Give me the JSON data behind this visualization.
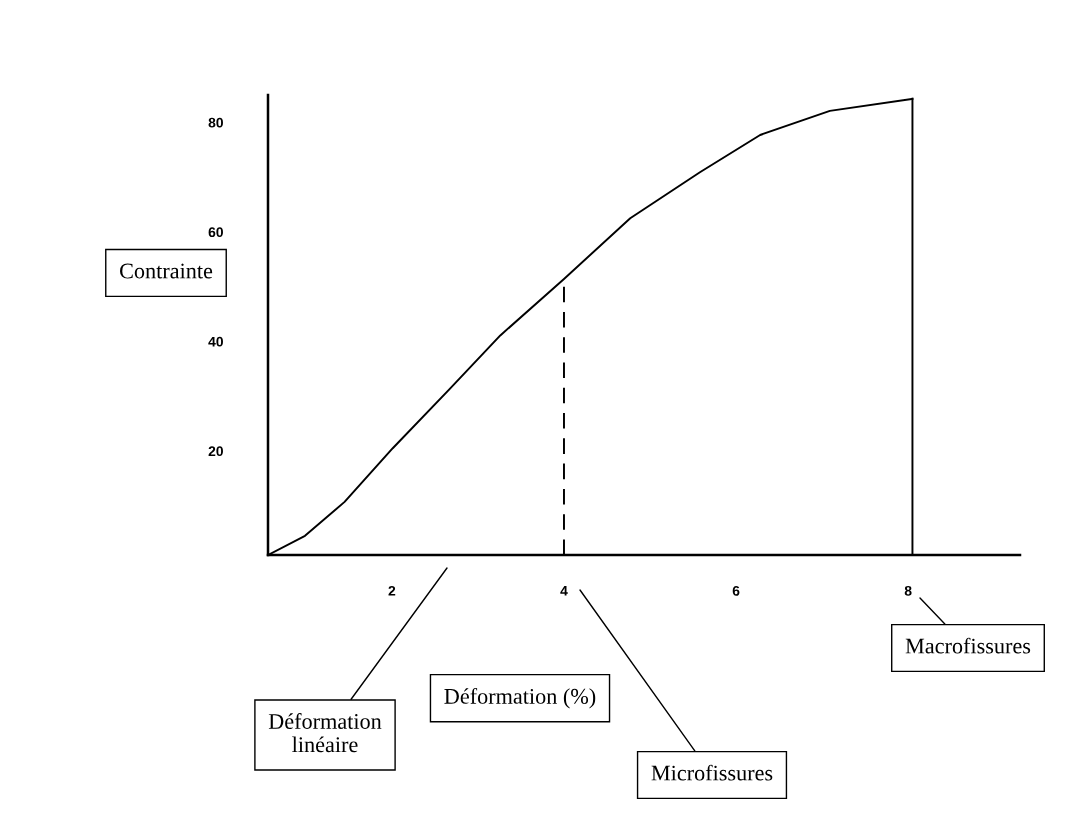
{
  "chart_data": {
    "type": "line",
    "xlabel": "Déformation (%)",
    "ylabel": "Contrainte",
    "xlim": [
      0.56,
      9.3
    ],
    "ylim": [
      1,
      85
    ],
    "xticks": [
      2,
      4,
      6,
      8
    ],
    "yticks": [
      20,
      40,
      60,
      80
    ],
    "grid": false,
    "marker": "none",
    "series": [
      {
        "color": "#000000",
        "line_style": "solid",
        "x": [
          0.56,
          0.99,
          1.45,
          2.01,
          2.67,
          3.26,
          4.0,
          4.77,
          5.58,
          6.28,
          7.09,
          8.05
        ],
        "values": [
          1,
          4.5,
          10.7,
          20.5,
          31.3,
          41.1,
          51.4,
          62.5,
          70.9,
          77.7,
          82.1,
          84.3
        ]
      },
      {
        "color": "#000000",
        "line_style": "dashed",
        "x": [
          4,
          4
        ],
        "values": [
          1,
          50.4
        ]
      },
      {
        "color": "#000000",
        "line_style": "solid",
        "x": [
          8.05,
          8.05
        ],
        "values": [
          1,
          84.3
        ]
      }
    ],
    "annotations": [
      "Déformation\nlinéaire",
      "Microfissures",
      "Macrofissures"
    ]
  }
}
